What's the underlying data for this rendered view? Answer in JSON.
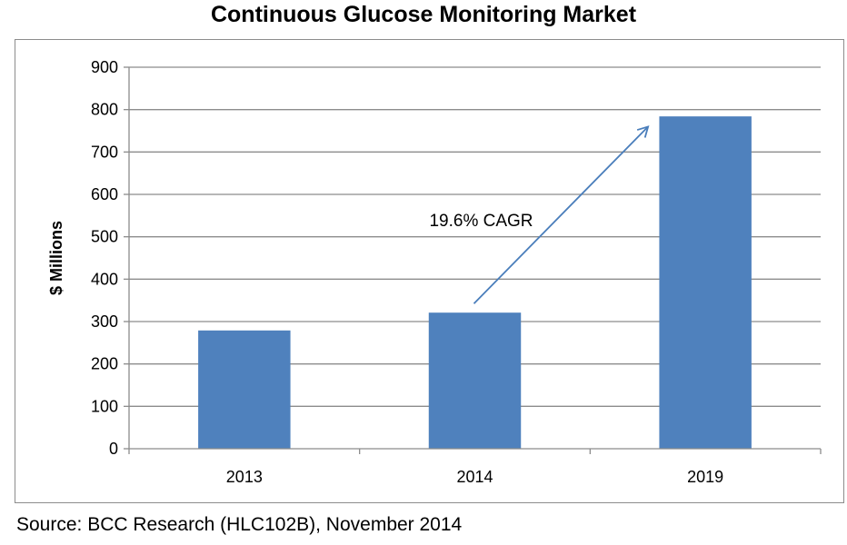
{
  "chart_data": {
    "type": "bar",
    "title": "Continuous Glucose Monitoring Market",
    "xlabel": "",
    "ylabel": "$ Millions",
    "categories": [
      "2013",
      "2014",
      "2019"
    ],
    "values": [
      279,
      321,
      784
    ],
    "ylim": [
      0,
      900
    ],
    "yticks": [
      0,
      100,
      200,
      300,
      400,
      500,
      600,
      700,
      800,
      900
    ],
    "grid": true,
    "legend": "none",
    "bar_color": "#4f81bd",
    "annotation": {
      "text": "19.6% CAGR",
      "arrow_from_category": "2014",
      "arrow_to_category": "2019",
      "arrow_color": "#4a7ebb"
    }
  },
  "footer": {
    "source": "Source: BCC Research (HLC102B), November 2014"
  }
}
